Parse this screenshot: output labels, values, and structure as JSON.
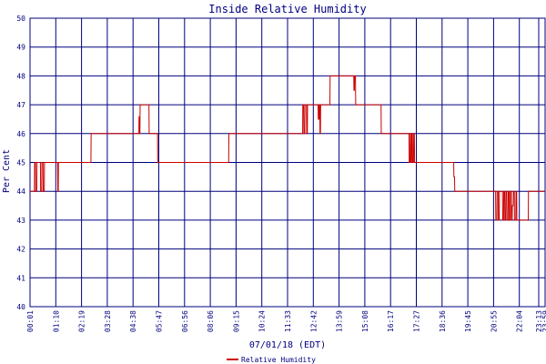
{
  "chart_data": {
    "type": "line",
    "title": "Inside Relative Humidity",
    "xlabel": "07/01/18 (EDT)",
    "ylabel": "Per Cent",
    "ylim": [
      40,
      50
    ],
    "y_ticks": [
      40,
      41,
      42,
      43,
      44,
      45,
      46,
      47,
      48,
      49,
      50
    ],
    "x_ticks": [
      "00:01",
      "01:10",
      "02:19",
      "03:28",
      "04:38",
      "05:47",
      "06:56",
      "08:06",
      "09:15",
      "10:24",
      "11:33",
      "12:42",
      "13:59",
      "15:08",
      "16:17",
      "17:27",
      "18:36",
      "19:45",
      "20:55",
      "22:04",
      "23:13",
      "23:59"
    ],
    "x_range_hours": [
      0.0167,
      23.983
    ],
    "grid": true,
    "legend_position": "bottom-center",
    "colors": {
      "series": "#cc0000",
      "grid": "#00007f",
      "text": "#00007f",
      "border": "#00007f"
    },
    "series": [
      {
        "name": "Relative Humidity",
        "points": [
          [
            0.0167,
            44
          ],
          [
            0.22,
            44
          ],
          [
            0.23,
            45
          ],
          [
            0.27,
            45
          ],
          [
            0.28,
            44
          ],
          [
            0.33,
            44
          ],
          [
            0.34,
            45
          ],
          [
            0.5,
            45
          ],
          [
            0.51,
            44
          ],
          [
            0.56,
            44
          ],
          [
            0.57,
            45
          ],
          [
            0.62,
            45
          ],
          [
            0.63,
            44
          ],
          [
            0.68,
            44
          ],
          [
            0.69,
            45
          ],
          [
            1.3,
            45
          ],
          [
            1.31,
            44
          ],
          [
            1.33,
            44
          ],
          [
            1.34,
            45
          ],
          [
            2.85,
            45
          ],
          [
            2.86,
            46
          ],
          [
            5.08,
            46
          ],
          [
            5.09,
            46.6
          ],
          [
            5.11,
            46
          ],
          [
            5.13,
            46
          ],
          [
            5.14,
            47
          ],
          [
            5.55,
            47
          ],
          [
            5.56,
            46
          ],
          [
            5.95,
            46
          ],
          [
            5.96,
            45
          ],
          [
            9.26,
            45
          ],
          [
            9.27,
            46
          ],
          [
            12.7,
            46
          ],
          [
            12.71,
            47
          ],
          [
            12.75,
            47
          ],
          [
            12.76,
            46
          ],
          [
            12.8,
            46
          ],
          [
            12.81,
            47
          ],
          [
            12.88,
            47
          ],
          [
            12.89,
            46
          ],
          [
            12.92,
            46
          ],
          [
            12.93,
            47
          ],
          [
            13.42,
            47
          ],
          [
            13.43,
            46.5
          ],
          [
            13.46,
            46.5
          ],
          [
            13.47,
            47
          ],
          [
            13.5,
            47
          ],
          [
            13.51,
            46
          ],
          [
            13.53,
            46
          ],
          [
            13.54,
            47
          ],
          [
            13.97,
            47
          ],
          [
            13.98,
            48
          ],
          [
            15.08,
            48
          ],
          [
            15.09,
            47.5
          ],
          [
            15.11,
            47.5
          ],
          [
            15.12,
            48
          ],
          [
            15.16,
            48
          ],
          [
            15.17,
            47
          ],
          [
            16.35,
            47
          ],
          [
            16.36,
            46
          ],
          [
            17.65,
            46
          ],
          [
            17.66,
            45
          ],
          [
            17.7,
            45
          ],
          [
            17.71,
            46
          ],
          [
            17.73,
            46
          ],
          [
            17.74,
            45
          ],
          [
            17.77,
            45
          ],
          [
            17.78,
            46
          ],
          [
            17.81,
            46
          ],
          [
            17.82,
            45
          ],
          [
            17.86,
            45
          ],
          [
            17.87,
            46
          ],
          [
            17.9,
            46
          ],
          [
            17.91,
            45
          ],
          [
            19.73,
            45
          ],
          [
            19.74,
            44.5
          ],
          [
            19.77,
            44.5
          ],
          [
            19.78,
            44
          ],
          [
            21.68,
            44
          ],
          [
            21.69,
            43
          ],
          [
            21.74,
            43
          ],
          [
            21.75,
            44
          ],
          [
            21.8,
            44
          ],
          [
            21.81,
            43
          ],
          [
            21.85,
            43
          ],
          [
            21.86,
            44
          ],
          [
            22.0,
            44
          ],
          [
            22.01,
            43
          ],
          [
            22.05,
            43
          ],
          [
            22.06,
            44
          ],
          [
            22.1,
            44
          ],
          [
            22.11,
            43
          ],
          [
            22.15,
            43
          ],
          [
            22.16,
            44
          ],
          [
            22.2,
            44
          ],
          [
            22.21,
            43
          ],
          [
            22.26,
            43
          ],
          [
            22.27,
            44
          ],
          [
            22.31,
            44
          ],
          [
            22.32,
            43
          ],
          [
            22.36,
            43
          ],
          [
            22.37,
            44
          ],
          [
            22.41,
            44
          ],
          [
            22.42,
            43
          ],
          [
            22.45,
            43
          ],
          [
            22.46,
            43.5
          ],
          [
            22.5,
            43.5
          ],
          [
            22.51,
            44
          ],
          [
            22.55,
            44
          ],
          [
            22.56,
            43
          ],
          [
            22.62,
            43
          ],
          [
            22.63,
            44
          ],
          [
            22.66,
            44
          ],
          [
            22.67,
            43
          ],
          [
            23.2,
            43
          ],
          [
            23.21,
            44
          ],
          [
            23.983,
            44
          ]
        ]
      }
    ]
  }
}
